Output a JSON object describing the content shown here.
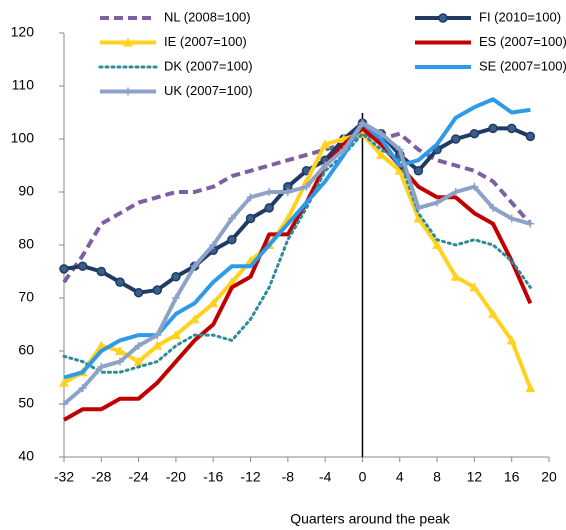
{
  "chart_data": {
    "type": "line",
    "x_label": "Quarters around the peak",
    "x": [
      -32,
      -30,
      -28,
      -26,
      -24,
      -22,
      -20,
      -18,
      -16,
      -14,
      -12,
      -10,
      -8,
      -6,
      -4,
      -2,
      0,
      2,
      4,
      6,
      8,
      10,
      12,
      14,
      16,
      18
    ],
    "series": [
      {
        "name": "NL (2008=100)",
        "color": "#7e5fa2",
        "style": "dashed",
        "marker": "none",
        "values": [
          73,
          78,
          84,
          86,
          88,
          89,
          90,
          90,
          91,
          93,
          94,
          95,
          96,
          97,
          98,
          99,
          101,
          100,
          101,
          98,
          96,
          95,
          94,
          92,
          88,
          84
        ]
      },
      {
        "name": "FI (2010=100)",
        "color": "#1f3b63",
        "style": "solid",
        "marker": "circle",
        "values": [
          75.5,
          76,
          75,
          73,
          71,
          71.5,
          74,
          76,
          79,
          81,
          85,
          87,
          91,
          94,
          96,
          100,
          103,
          101,
          97,
          94,
          98,
          100,
          101,
          102,
          102,
          100.5
        ]
      },
      {
        "name": "IE (2007=100)",
        "color": "#ffd21f",
        "style": "solid",
        "marker": "triangle",
        "values": [
          54,
          56,
          61,
          60,
          58,
          61,
          63,
          66,
          69,
          73,
          77,
          80,
          85,
          92,
          99,
          100,
          101,
          97,
          94,
          85,
          80,
          74,
          72,
          67,
          62,
          53
        ]
      },
      {
        "name": "ES (2007=100)",
        "color": "#c00000",
        "style": "solid",
        "marker": "none",
        "values": [
          47,
          49,
          49,
          51,
          51,
          54,
          58,
          62,
          65,
          72,
          74,
          82,
          82,
          88,
          95,
          99,
          102,
          99,
          95,
          91,
          89,
          89,
          86,
          84,
          77,
          69
        ]
      },
      {
        "name": "DK (2007=100)",
        "color": "#2e8b9a",
        "style": "dotted",
        "marker": "none",
        "values": [
          59,
          58,
          56,
          56,
          57,
          58,
          61,
          63,
          63,
          62,
          66,
          72,
          81,
          87,
          94,
          97,
          101,
          98,
          96,
          86,
          81,
          80,
          81,
          80,
          77,
          72
        ]
      },
      {
        "name": "SE (2007=100)",
        "color": "#2f9be8",
        "style": "solid",
        "marker": "none",
        "values": [
          55,
          56,
          60,
          62,
          63,
          63,
          67,
          69,
          73,
          76,
          76,
          80,
          84,
          88,
          92,
          97,
          103,
          100,
          95,
          96,
          99,
          104,
          106,
          107.5,
          105,
          105.5
        ]
      },
      {
        "name": "UK (2007=100)",
        "color": "#8ea2c8",
        "style": "solid",
        "marker": "plus",
        "values": [
          50,
          53,
          57,
          58,
          61,
          63,
          70,
          76,
          80,
          85,
          89,
          90,
          90,
          91,
          95,
          98,
          103,
          101,
          98,
          87,
          88,
          90,
          91,
          87,
          85,
          84
        ]
      }
    ],
    "vline": 0,
    "xlim": [
      -32,
      20
    ],
    "xticks": [
      -32,
      -28,
      -24,
      -20,
      -16,
      -12,
      -8,
      -4,
      0,
      4,
      8,
      12,
      16,
      20
    ],
    "ylim": [
      40,
      120
    ],
    "yticks": [
      40,
      50,
      60,
      70,
      80,
      90,
      100,
      110,
      120
    ],
    "grid": false
  }
}
